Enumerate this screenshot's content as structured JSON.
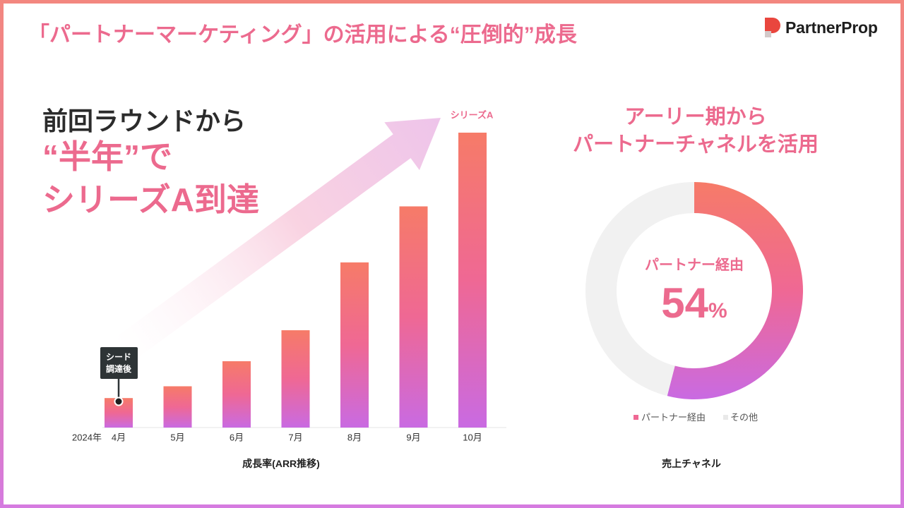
{
  "slide": {
    "title": "「パートナーマーケティング」の活用による“圧倒的”成長",
    "logo_text": "PartnerProp",
    "logo_icon": "partnerprop-logo-icon"
  },
  "headline": {
    "line1": "前回ラウンドから",
    "line2": "“半年”で",
    "line3": "シリーズA到達"
  },
  "channel_heading": {
    "line1": "アーリー期から",
    "line2": "パートナーチャネルを活用"
  },
  "colors": {
    "accent_pink": "#ec6a8e",
    "dark_text": "#2b2b2b",
    "gradient_top": "#f67b68",
    "gradient_mid": "#ef6894",
    "gradient_bottom": "#c96ae2",
    "other_gray": "#f1f1f1",
    "arrow_light": "#f9d3e2",
    "arrow_strong": "#eec4ea",
    "callout_bg": "#2e3436"
  },
  "chart_data": [
    {
      "type": "bar",
      "caption": "成長率(ARR推移)",
      "year_label": "2024年",
      "categories": [
        "4月",
        "5月",
        "6月",
        "7月",
        "8月",
        "9月",
        "10月"
      ],
      "values": [
        10,
        14,
        22.5,
        33,
        56,
        75,
        100
      ],
      "annotations": [
        {
          "category": "4月",
          "text_lines": [
            "シード",
            "調達後"
          ]
        },
        {
          "category": "10月",
          "text": "シリーズA"
        }
      ],
      "trend_arrow": true,
      "grid": false,
      "legend": "none"
    },
    {
      "type": "pie",
      "style": "donut",
      "caption": "売上チャネル",
      "slices": [
        {
          "label": "パートナー経由",
          "value": 54
        },
        {
          "label": "その他",
          "value": 46
        }
      ],
      "center_label": "パートナー経由",
      "center_value": "54",
      "center_unit": "%",
      "legend": "bottom"
    }
  ]
}
